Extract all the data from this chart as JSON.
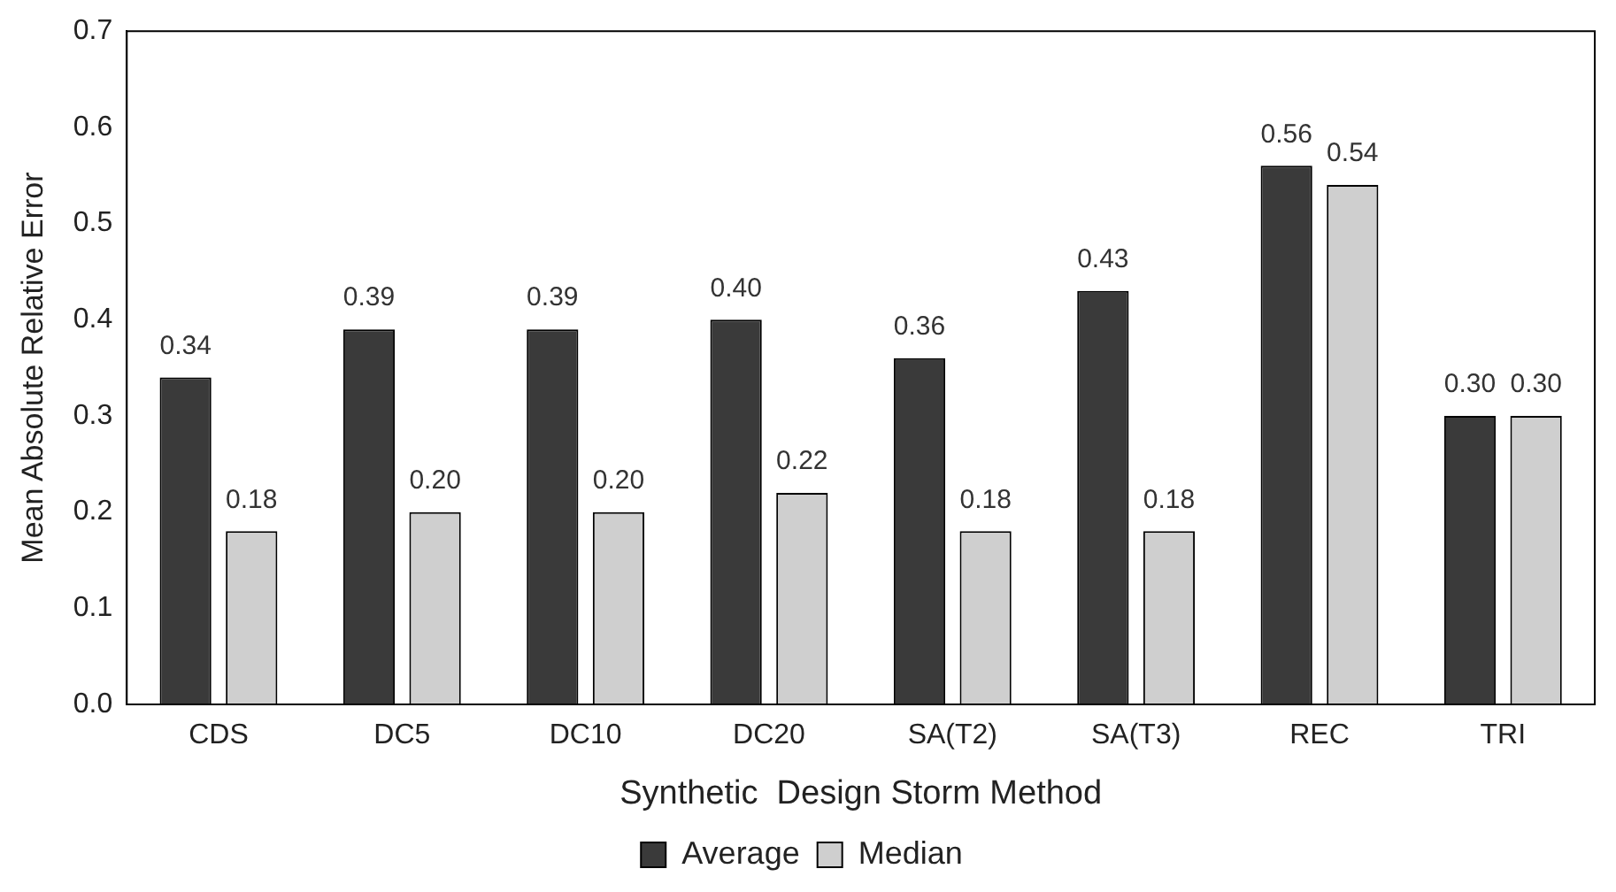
{
  "chart_data": {
    "type": "bar",
    "xlabel": "Synthetic  Design Storm Method",
    "ylabel": "Mean Absolute Relative Error",
    "categories": [
      "CDS",
      "DC5",
      "DC10",
      "DC20",
      "SA(T2)",
      "SA(T3)",
      "REC",
      "TRI"
    ],
    "series": [
      {
        "name": "Average",
        "color": "#3a3a3a",
        "values": [
          0.34,
          0.39,
          0.39,
          0.4,
          0.36,
          0.43,
          0.56,
          0.3
        ],
        "value_labels": [
          "0.34",
          "0.39",
          "0.39",
          "0.40",
          "0.36",
          "0.43",
          "0.56",
          "0.30"
        ]
      },
      {
        "name": "Median",
        "color": "#cfcfcf",
        "values": [
          0.18,
          0.2,
          0.2,
          0.22,
          0.18,
          0.18,
          0.54,
          0.3
        ],
        "value_labels": [
          "0.18",
          "0.20",
          "0.20",
          "0.22",
          "0.18",
          "0.18",
          "0.54",
          "0.30"
        ]
      }
    ],
    "ylim": [
      0,
      0.7
    ],
    "yticks": [
      {
        "value": 0,
        "label": "0.0"
      },
      {
        "value": 0.1,
        "label": "0.1"
      },
      {
        "value": 0.2,
        "label": "0.2"
      },
      {
        "value": 0.3,
        "label": "0.3"
      },
      {
        "value": 0.4,
        "label": "0.4"
      },
      {
        "value": 0.5,
        "label": "0.5"
      },
      {
        "value": 0.6,
        "label": "0.6"
      },
      {
        "value": 0.7,
        "label": "0.7"
      }
    ],
    "grid": false,
    "legend": "bottom"
  }
}
